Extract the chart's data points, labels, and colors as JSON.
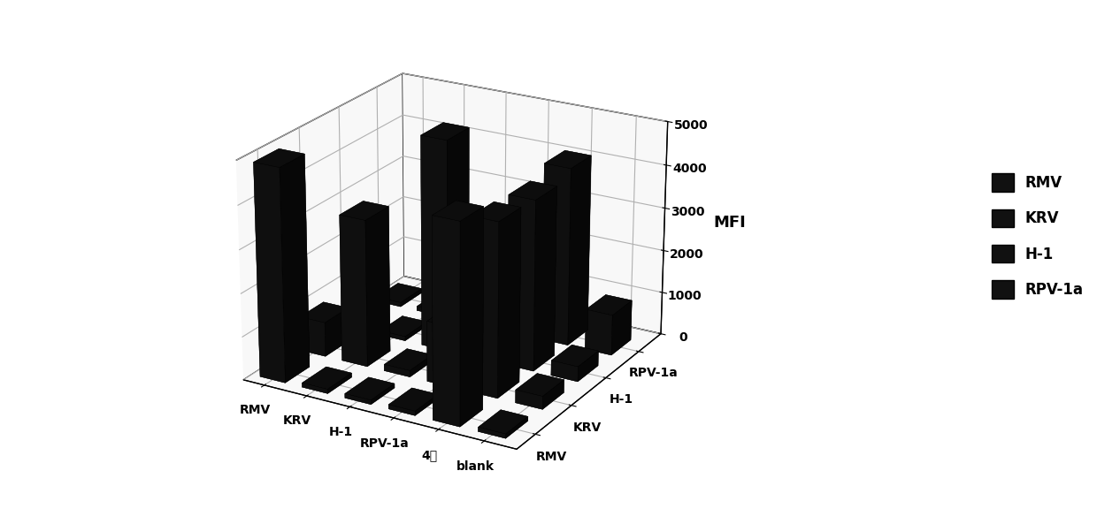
{
  "title": "",
  "ylabel": "MFI",
  "ylim": [
    0,
    5000
  ],
  "yticks": [
    0,
    1000,
    2000,
    3000,
    4000,
    5000
  ],
  "x_labels": [
    "RMV",
    "KRV",
    "H-1",
    "RPV-1a",
    "4重",
    "blank"
  ],
  "z_labels": [
    "RMV",
    "KRV",
    "H-1",
    "RPV-1a"
  ],
  "bar_color": "#111111",
  "bar_color_edge": "#000000",
  "legend_labels": [
    "RMV",
    "KRV",
    "H-1",
    "RPV-1a"
  ],
  "data": {
    "RMV": [
      4900,
      800,
      100,
      100
    ],
    "KRV": [
      100,
      3400,
      100,
      100
    ],
    "H-1": [
      100,
      150,
      4900,
      1500
    ],
    "RPV-1a": [
      100,
      1400,
      400,
      100
    ],
    "4重": [
      4550,
      4000,
      3950,
      4150
    ],
    "blank": [
      100,
      300,
      350,
      950
    ]
  },
  "background_color": "#ffffff",
  "figsize": [
    12.4,
    5.93
  ],
  "dpi": 100,
  "elev": 22,
  "azim": -60
}
